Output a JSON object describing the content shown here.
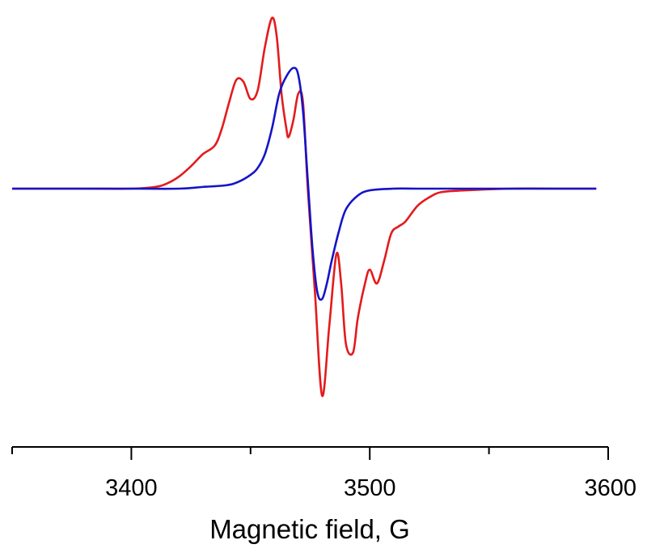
{
  "chart_data": {
    "type": "line",
    "title": "",
    "xlabel": "Magnetic field, G",
    "ylabel": "",
    "xlim": [
      3350,
      3600
    ],
    "ylim": [
      -1.0,
      1.0
    ],
    "y_axis_shown": false,
    "grid": false,
    "legend": "none",
    "x_ticks_major": [
      3400,
      3500,
      3600
    ],
    "x_tick_labels": [
      "3400",
      "3500",
      "3600"
    ],
    "x_ticks_minor": [
      3350,
      3450,
      3550
    ],
    "series": [
      {
        "color": "#e41a1c",
        "x": [
          3350,
          3360,
          3380,
          3400,
          3410,
          3415,
          3420,
          3425,
          3430,
          3435,
          3438,
          3441,
          3444,
          3447,
          3450,
          3453,
          3456,
          3459,
          3461,
          3463,
          3465,
          3466,
          3468,
          3470,
          3472,
          3474,
          3477,
          3480,
          3483,
          3486,
          3488,
          3490,
          3493,
          3495,
          3498,
          3500,
          3503,
          3506,
          3509,
          3512,
          3515,
          3520,
          3525,
          3530,
          3540,
          3560,
          3580,
          3595
        ],
        "y": [
          0.0,
          0.0,
          0.0,
          0.0,
          0.01,
          0.03,
          0.07,
          0.13,
          0.2,
          0.25,
          0.35,
          0.5,
          0.63,
          0.62,
          0.52,
          0.57,
          0.82,
          0.99,
          0.88,
          0.55,
          0.35,
          0.3,
          0.4,
          0.55,
          0.5,
          0.0,
          -0.6,
          -1.2,
          -0.8,
          -0.38,
          -0.55,
          -0.9,
          -0.95,
          -0.75,
          -0.55,
          -0.47,
          -0.55,
          -0.42,
          -0.26,
          -0.22,
          -0.19,
          -0.1,
          -0.05,
          -0.02,
          -0.01,
          0.0,
          0.0,
          0.0
        ]
      },
      {
        "color": "#1414c8",
        "x": [
          3350,
          3360,
          3380,
          3400,
          3420,
          3430,
          3440,
          3445,
          3450,
          3453,
          3456,
          3459,
          3462,
          3465,
          3468,
          3470,
          3472,
          3474,
          3476,
          3478,
          3480,
          3482,
          3484,
          3487,
          3490,
          3495,
          3500,
          3510,
          3520,
          3530,
          3550,
          3570,
          3595
        ],
        "y": [
          0.0,
          0.0,
          0.0,
          0.0,
          0.0,
          0.01,
          0.02,
          0.04,
          0.08,
          0.12,
          0.2,
          0.35,
          0.55,
          0.65,
          0.7,
          0.66,
          0.45,
          0.05,
          -0.35,
          -0.6,
          -0.64,
          -0.55,
          -0.42,
          -0.25,
          -0.12,
          -0.04,
          -0.01,
          0.0,
          0.0,
          0.0,
          0.0,
          0.0,
          0.0
        ]
      }
    ]
  }
}
